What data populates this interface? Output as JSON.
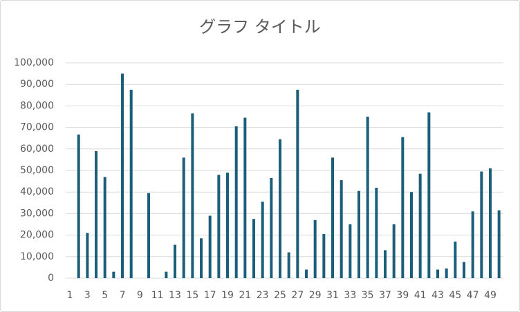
{
  "chart_data": {
    "type": "bar",
    "title": "グラフ タイトル",
    "categories": [
      "1",
      null,
      "3",
      null,
      "5",
      null,
      "7",
      null,
      "9",
      null,
      "11",
      null,
      "13",
      null,
      "15",
      null,
      "17",
      null,
      "19",
      null,
      "21",
      null,
      "23",
      null,
      "25",
      null,
      "27",
      null,
      "29",
      null,
      "31",
      null,
      "33",
      null,
      "35",
      null,
      "37",
      null,
      "39",
      null,
      "41",
      null,
      "43",
      null,
      "45",
      null,
      "47",
      null,
      "49",
      null
    ],
    "values": [
      0,
      66700,
      21000,
      59000,
      47000,
      3000,
      95000,
      87500,
      0,
      39500,
      0,
      3000,
      15500,
      56000,
      76500,
      18500,
      29000,
      48000,
      49000,
      70500,
      74500,
      27500,
      35500,
      46500,
      64500,
      12000,
      87500,
      4000,
      27000,
      20500,
      56000,
      45500,
      25000,
      40500,
      75000,
      42000,
      13000,
      25000,
      65500,
      40000,
      48500,
      77000,
      4000,
      4500,
      17000,
      7500,
      31000,
      49500,
      51000,
      31500
    ],
    "color": "#1b5e79",
    "ylim": [
      0,
      100000
    ],
    "yticks": [
      0,
      {
        "value": 10000,
        "label": "10,000"
      },
      {
        "value": 20000,
        "label": "20,000"
      },
      {
        "value": 30000,
        "label": "30,000"
      },
      {
        "value": 40000,
        "label": "40,000"
      },
      {
        "value": 50000,
        "label": "50,000"
      },
      {
        "value": 60000,
        "label": "60,000"
      },
      {
        "value": 70000,
        "label": "70,000"
      },
      {
        "value": 80000,
        "label": "80,000"
      },
      {
        "value": 90000,
        "label": "90,000"
      },
      {
        "value": 100000,
        "label": "100,000"
      }
    ],
    "grid": true
  }
}
